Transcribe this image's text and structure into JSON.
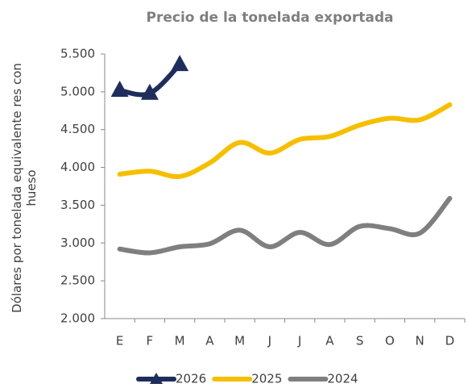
{
  "chart_data": {
    "type": "line",
    "title": "Precio de la tonelada exportada",
    "ylabel": "Dólares por tonelada equivalente res con hueso",
    "categories": [
      "E",
      "F",
      "M",
      "A",
      "M",
      "J",
      "J",
      "A",
      "S",
      "O",
      "N",
      "D"
    ],
    "series": [
      {
        "name": "2026",
        "color": "#1f2d5c",
        "marker": "triangle",
        "values": [
          5020,
          4980,
          5360,
          null,
          null,
          null,
          null,
          null,
          null,
          null,
          null,
          null
        ]
      },
      {
        "name": "2025",
        "color": "#f5bf00",
        "values": [
          3910,
          3950,
          3880,
          4060,
          4330,
          4190,
          4370,
          4410,
          4560,
          4650,
          4630,
          4830
        ]
      },
      {
        "name": "2024",
        "color": "#7f7f7f",
        "values": [
          2920,
          2870,
          2950,
          2990,
          3170,
          2950,
          3140,
          2980,
          3220,
          3190,
          3130,
          3590
        ]
      }
    ],
    "ylim": [
      2000,
      5500
    ],
    "yticks": [
      {
        "value": 2000,
        "label": "2.000"
      },
      {
        "value": 2500,
        "label": "2.500"
      },
      {
        "value": 3000,
        "label": "3.000"
      },
      {
        "value": 3500,
        "label": "3.500"
      },
      {
        "value": 4000,
        "label": "4.000"
      },
      {
        "value": 4500,
        "label": "4.500"
      },
      {
        "value": 5000,
        "label": "5.000"
      },
      {
        "value": 5500,
        "label": "5.500"
      }
    ],
    "legend": "bottom"
  }
}
